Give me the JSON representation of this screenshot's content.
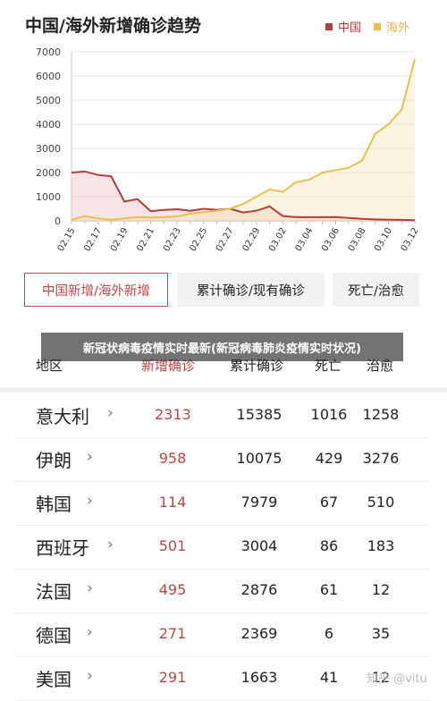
{
  "chart_title": "中国/海外新增确诊趋势",
  "legend": {
    "china": "中国",
    "overseas": "海外"
  },
  "colors": {
    "china": "#b83b3b",
    "overseas": "#e8c04a",
    "accent": "#b84848"
  },
  "chart_data": {
    "type": "area",
    "title": "中国/海外新增确诊趋势",
    "xlabel": "",
    "ylabel": "",
    "ylim": [
      0,
      7000
    ],
    "yticks": [
      0,
      1000,
      2000,
      3000,
      4000,
      5000,
      6000,
      7000
    ],
    "x": [
      "02.15",
      "",
      "02.17",
      "",
      "02.19",
      "",
      "02.21",
      "",
      "02.23",
      "",
      "02.25",
      "",
      "02.27",
      "",
      "02.29",
      "",
      "03.02",
      "",
      "03.04",
      "",
      "03.06",
      "",
      "03.08",
      "",
      "03.10",
      "",
      "03.12"
    ],
    "xtick_labels": [
      "02.15",
      "02.17",
      "02.19",
      "02.21",
      "02.23",
      "02.25",
      "02.27",
      "02.29",
      "03.02",
      "03.04",
      "03.06",
      "03.08",
      "03.10",
      "03.12"
    ],
    "grid": true,
    "legend_position": "top-right",
    "series": [
      {
        "name": "中国",
        "color": "#b83b3b",
        "values": [
          2000,
          2050,
          1900,
          1850,
          800,
          900,
          400,
          450,
          480,
          420,
          500,
          450,
          500,
          350,
          420,
          600,
          200,
          150,
          150,
          150,
          160,
          120,
          80,
          60,
          50,
          40,
          30
        ]
      },
      {
        "name": "海外",
        "color": "#e8c04a",
        "values": [
          40,
          200,
          100,
          50,
          100,
          150,
          140,
          160,
          180,
          300,
          360,
          420,
          500,
          700,
          1000,
          1300,
          1200,
          1600,
          1700,
          2000,
          2100,
          2200,
          2500,
          3600,
          4000,
          4600,
          6700
        ]
      }
    ]
  },
  "tabs": [
    {
      "label": "中国新增/海外新增"
    },
    {
      "label": "累计确诊/现有确诊"
    },
    {
      "label": "死亡/治愈"
    }
  ],
  "banner": "新冠状病毒疫情实时最新(新冠病毒肺炎疫情实时状况)",
  "table": {
    "headers": {
      "region": "地区",
      "new": "新增确诊",
      "cumulative": "累计确诊",
      "death": "死亡",
      "cure": "治愈"
    },
    "rows": [
      {
        "name": "意大利",
        "new": "2313",
        "cum": "15385",
        "death": "1016",
        "cure": "1258"
      },
      {
        "name": "伊朗",
        "new": "958",
        "cum": "10075",
        "death": "429",
        "cure": "3276"
      },
      {
        "name": "韩国",
        "new": "114",
        "cum": "7979",
        "death": "67",
        "cure": "510"
      },
      {
        "name": "西班牙",
        "new": "501",
        "cum": "3004",
        "death": "86",
        "cure": "183"
      },
      {
        "name": "法国",
        "new": "495",
        "cum": "2876",
        "death": "61",
        "cure": "12"
      },
      {
        "name": "德国",
        "new": "271",
        "cum": "2369",
        "death": "6",
        "cure": "35"
      },
      {
        "name": "美国",
        "new": "291",
        "cum": "1663",
        "death": "41",
        "cure": "12"
      }
    ]
  },
  "watermark": "知乎 @vitu"
}
